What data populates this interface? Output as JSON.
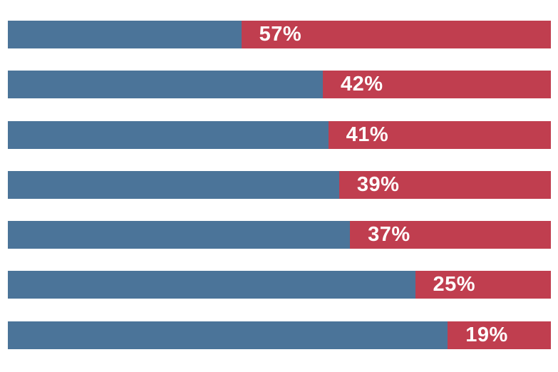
{
  "chart_data": {
    "type": "bar",
    "orientation": "horizontal",
    "stacked": true,
    "unit": "%",
    "xlim": [
      0,
      100
    ],
    "grid": false,
    "legend": "none",
    "axis_labels": "none",
    "values": [
      57,
      42,
      41,
      39,
      37,
      25,
      19
    ],
    "labels": [
      "57%",
      "42%",
      "41%",
      "39%",
      "37%",
      "25%",
      "19%"
    ],
    "label_color": "#ffffff",
    "series": [
      {
        "name": "remainder-segment",
        "color": "#4b7499",
        "values": [
          43,
          58,
          59,
          61,
          63,
          75,
          81
        ]
      },
      {
        "name": "value-segment",
        "color": "#c03e4f",
        "values": [
          57,
          42,
          41,
          39,
          37,
          25,
          19
        ]
      }
    ],
    "background": "#ffffff"
  }
}
